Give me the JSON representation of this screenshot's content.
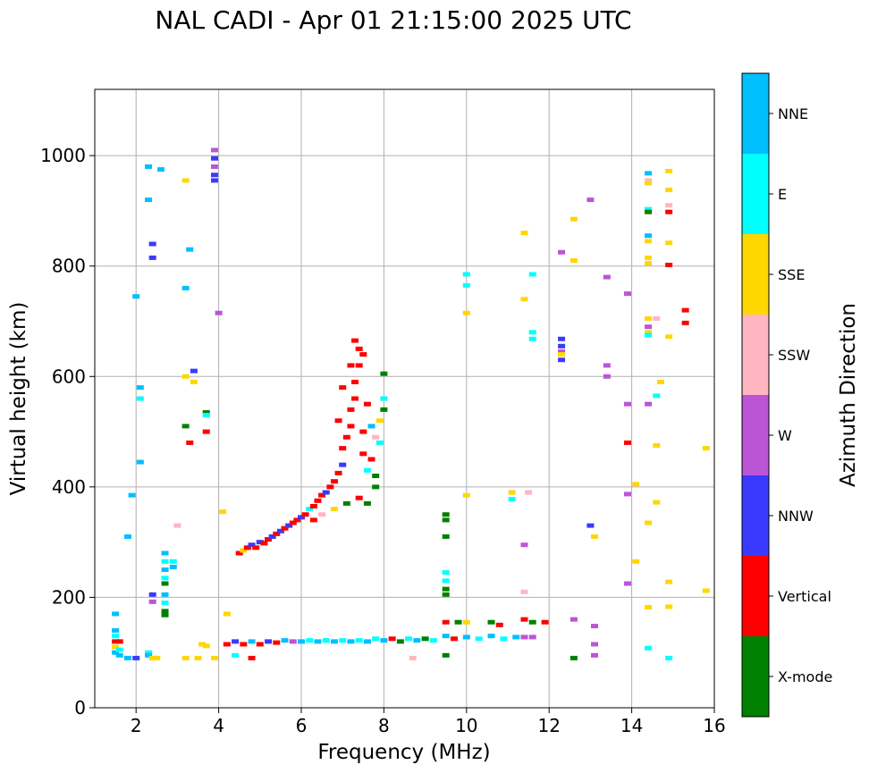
{
  "chart_data": {
    "type": "scatter",
    "title": "NAL CADI - Apr 01 21:15:00 2025 UTC",
    "xlabel": "Frequency (MHz)",
    "ylabel": "Virtual height (km)",
    "xlim": [
      1,
      16
    ],
    "ylim": [
      0,
      1120
    ],
    "xticks": [
      2,
      4,
      6,
      8,
      10,
      12,
      14,
      16
    ],
    "yticks": [
      0,
      200,
      400,
      600,
      800,
      1000
    ],
    "grid": true,
    "colorbar": {
      "label": "Azimuth Direction",
      "categories": [
        {
          "name": "X-mode",
          "color": "#008000"
        },
        {
          "name": "Vertical",
          "color": "#ff0000"
        },
        {
          "name": "NNW",
          "color": "#3a3aff"
        },
        {
          "name": "W",
          "color": "#bb55d6"
        },
        {
          "name": "SSW",
          "color": "#ffb6c1"
        },
        {
          "name": "SSE",
          "color": "#ffd700"
        },
        {
          "name": "E",
          "color": "#00ffff"
        },
        {
          "name": "NNE",
          "color": "#00bfff"
        }
      ]
    },
    "echoes": [
      [
        1.5,
        170,
        "NNE"
      ],
      [
        1.5,
        140,
        "NNE"
      ],
      [
        1.5,
        130,
        "E"
      ],
      [
        1.5,
        120,
        "Vertical"
      ],
      [
        1.5,
        110,
        "SSE"
      ],
      [
        1.5,
        100,
        "NNE"
      ],
      [
        1.6,
        120,
        "Vertical"
      ],
      [
        1.6,
        105,
        "E"
      ],
      [
        1.6,
        95,
        "NNE"
      ],
      [
        1.8,
        90,
        "NNE"
      ],
      [
        2.0,
        90,
        "NNW"
      ],
      [
        2.3,
        100,
        "E"
      ],
      [
        2.3,
        95,
        "NNE"
      ],
      [
        2.4,
        90,
        "SSE"
      ],
      [
        1.9,
        385,
        "NNE"
      ],
      [
        1.8,
        310,
        "NNE"
      ],
      [
        2.1,
        580,
        "NNE"
      ],
      [
        2.1,
        560,
        "E"
      ],
      [
        2.1,
        445,
        "NNE"
      ],
      [
        2.0,
        745,
        "NNE"
      ],
      [
        2.3,
        980,
        "NNE"
      ],
      [
        2.3,
        920,
        "NNE"
      ],
      [
        2.4,
        840,
        "NNW"
      ],
      [
        2.4,
        815,
        "NNW"
      ],
      [
        2.6,
        975,
        "NNE"
      ],
      [
        2.4,
        205,
        "NNW"
      ],
      [
        2.4,
        192,
        "W"
      ],
      [
        2.7,
        280,
        "NNE"
      ],
      [
        2.7,
        265,
        "E"
      ],
      [
        2.7,
        250,
        "NNE"
      ],
      [
        2.7,
        235,
        "E"
      ],
      [
        2.7,
        225,
        "X-mode"
      ],
      [
        2.7,
        205,
        "NNE"
      ],
      [
        2.7,
        190,
        "E"
      ],
      [
        2.7,
        175,
        "X-mode"
      ],
      [
        2.7,
        168,
        "X-mode"
      ],
      [
        2.9,
        265,
        "E"
      ],
      [
        2.9,
        255,
        "NNE"
      ],
      [
        3.3,
        830,
        "NNE"
      ],
      [
        3.2,
        760,
        "NNE"
      ],
      [
        3.2,
        600,
        "SSE"
      ],
      [
        3.3,
        480,
        "Vertical"
      ],
      [
        3.4,
        610,
        "NNW"
      ],
      [
        3.4,
        590,
        "SSE"
      ],
      [
        3.2,
        510,
        "X-mode"
      ],
      [
        3.2,
        955,
        "SSE"
      ],
      [
        3.0,
        330,
        "SSW"
      ],
      [
        3.7,
        535,
        "X-mode"
      ],
      [
        3.7,
        530,
        "E"
      ],
      [
        3.7,
        500,
        "Vertical"
      ],
      [
        3.9,
        1010,
        "W"
      ],
      [
        3.9,
        995,
        "NNW"
      ],
      [
        3.9,
        980,
        "W"
      ],
      [
        3.9,
        965,
        "NNW"
      ],
      [
        3.9,
        955,
        "NNW"
      ],
      [
        4.0,
        715,
        "W"
      ],
      [
        4.1,
        355,
        "SSE"
      ],
      [
        4.2,
        170,
        "SSE"
      ],
      [
        3.2,
        90,
        "SSE"
      ],
      [
        3.5,
        90,
        "SSE"
      ],
      [
        3.6,
        115,
        "SSE"
      ],
      [
        3.7,
        112,
        "SSE"
      ],
      [
        3.9,
        90,
        "SSE"
      ],
      [
        2.5,
        90,
        "SSE"
      ],
      [
        4.5,
        280,
        "Vertical"
      ],
      [
        4.6,
        285,
        "SSE"
      ],
      [
        4.7,
        290,
        "Vertical"
      ],
      [
        4.8,
        295,
        "NNW"
      ],
      [
        4.9,
        290,
        "Vertical"
      ],
      [
        5.0,
        300,
        "NNW"
      ],
      [
        5.1,
        298,
        "Vertical"
      ],
      [
        5.2,
        305,
        "Vertical"
      ],
      [
        5.3,
        310,
        "NNW"
      ],
      [
        5.4,
        315,
        "Vertical"
      ],
      [
        5.5,
        320,
        "NNW"
      ],
      [
        5.6,
        325,
        "Vertical"
      ],
      [
        5.7,
        330,
        "NNW"
      ],
      [
        5.8,
        335,
        "Vertical"
      ],
      [
        5.9,
        340,
        "Vertical"
      ],
      [
        6.0,
        345,
        "NNW"
      ],
      [
        6.1,
        350,
        "Vertical"
      ],
      [
        6.2,
        360,
        "E"
      ],
      [
        6.3,
        365,
        "Vertical"
      ],
      [
        6.4,
        375,
        "Vertical"
      ],
      [
        6.5,
        385,
        "Vertical"
      ],
      [
        6.6,
        390,
        "NNW"
      ],
      [
        6.7,
        400,
        "Vertical"
      ],
      [
        6.8,
        410,
        "Vertical"
      ],
      [
        6.9,
        425,
        "Vertical"
      ],
      [
        7.0,
        440,
        "NNW"
      ],
      [
        7.0,
        470,
        "Vertical"
      ],
      [
        7.1,
        490,
        "Vertical"
      ],
      [
        7.2,
        510,
        "Vertical"
      ],
      [
        7.2,
        540,
        "Vertical"
      ],
      [
        7.3,
        560,
        "Vertical"
      ],
      [
        7.3,
        590,
        "Vertical"
      ],
      [
        7.4,
        620,
        "Vertical"
      ],
      [
        7.4,
        650,
        "Vertical"
      ],
      [
        7.3,
        665,
        "Vertical"
      ],
      [
        7.5,
        460,
        "Vertical"
      ],
      [
        7.6,
        430,
        "E"
      ],
      [
        7.7,
        450,
        "Vertical"
      ],
      [
        7.8,
        420,
        "X-mode"
      ],
      [
        7.9,
        480,
        "E"
      ],
      [
        7.9,
        520,
        "SSE"
      ],
      [
        8.0,
        540,
        "X-mode"
      ],
      [
        8.0,
        560,
        "E"
      ],
      [
        8.0,
        605,
        "X-mode"
      ],
      [
        7.8,
        400,
        "X-mode"
      ],
      [
        7.6,
        370,
        "X-mode"
      ],
      [
        7.4,
        380,
        "Vertical"
      ],
      [
        6.5,
        350,
        "SSW"
      ],
      [
        6.8,
        360,
        "SSE"
      ],
      [
        7.1,
        370,
        "X-mode"
      ],
      [
        6.3,
        340,
        "Vertical"
      ],
      [
        6.9,
        520,
        "Vertical"
      ],
      [
        7.0,
        580,
        "Vertical"
      ],
      [
        7.6,
        550,
        "Vertical"
      ],
      [
        7.5,
        500,
        "Vertical"
      ],
      [
        7.8,
        490,
        "SSW"
      ],
      [
        7.7,
        510,
        "NNE"
      ],
      [
        7.2,
        620,
        "Vertical"
      ],
      [
        7.5,
        640,
        "Vertical"
      ],
      [
        4.2,
        115,
        "Vertical"
      ],
      [
        4.4,
        120,
        "NNW"
      ],
      [
        4.6,
        115,
        "Vertical"
      ],
      [
        4.8,
        120,
        "NNE"
      ],
      [
        5.0,
        115,
        "Vertical"
      ],
      [
        5.2,
        120,
        "NNW"
      ],
      [
        5.4,
        118,
        "Vertical"
      ],
      [
        5.6,
        122,
        "NNE"
      ],
      [
        5.8,
        120,
        "W"
      ],
      [
        6.0,
        120,
        "NNE"
      ],
      [
        6.2,
        122,
        "E"
      ],
      [
        6.4,
        120,
        "NNE"
      ],
      [
        6.6,
        122,
        "E"
      ],
      [
        6.8,
        120,
        "NNE"
      ],
      [
        7.0,
        122,
        "E"
      ],
      [
        7.2,
        120,
        "NNE"
      ],
      [
        7.4,
        122,
        "E"
      ],
      [
        7.6,
        120,
        "NNE"
      ],
      [
        7.8,
        125,
        "E"
      ],
      [
        8.0,
        122,
        "NNE"
      ],
      [
        8.2,
        125,
        "Vertical"
      ],
      [
        8.4,
        120,
        "X-mode"
      ],
      [
        8.6,
        125,
        "E"
      ],
      [
        8.8,
        122,
        "NNE"
      ],
      [
        9.0,
        125,
        "X-mode"
      ],
      [
        9.2,
        122,
        "E"
      ],
      [
        9.5,
        130,
        "NNE"
      ],
      [
        9.7,
        125,
        "Vertical"
      ],
      [
        10.0,
        128,
        "NNE"
      ],
      [
        10.3,
        125,
        "E"
      ],
      [
        10.6,
        130,
        "NNE"
      ],
      [
        10.9,
        125,
        "E"
      ],
      [
        11.2,
        128,
        "NNE"
      ],
      [
        4.4,
        95,
        "E"
      ],
      [
        4.8,
        90,
        "Vertical"
      ],
      [
        8.7,
        90,
        "SSW"
      ],
      [
        9.5,
        350,
        "X-mode"
      ],
      [
        9.5,
        340,
        "X-mode"
      ],
      [
        9.5,
        310,
        "X-mode"
      ],
      [
        9.5,
        245,
        "E"
      ],
      [
        9.5,
        230,
        "E"
      ],
      [
        9.5,
        215,
        "X-mode"
      ],
      [
        9.5,
        205,
        "X-mode"
      ],
      [
        9.5,
        155,
        "Vertical"
      ],
      [
        9.5,
        95,
        "X-mode"
      ],
      [
        9.8,
        155,
        "X-mode"
      ],
      [
        10.0,
        155,
        "SSE"
      ],
      [
        10.6,
        155,
        "X-mode"
      ],
      [
        10.8,
        150,
        "Vertical"
      ],
      [
        11.4,
        160,
        "Vertical"
      ],
      [
        11.6,
        155,
        "X-mode"
      ],
      [
        11.9,
        155,
        "Vertical"
      ],
      [
        10.0,
        785,
        "E"
      ],
      [
        10.0,
        765,
        "E"
      ],
      [
        10.0,
        715,
        "SSE"
      ],
      [
        10.0,
        385,
        "SSE"
      ],
      [
        11.1,
        390,
        "SSE"
      ],
      [
        11.1,
        378,
        "E"
      ],
      [
        11.5,
        390,
        "SSW"
      ],
      [
        11.4,
        295,
        "W"
      ],
      [
        11.4,
        210,
        "SSW"
      ],
      [
        11.4,
        128,
        "W"
      ],
      [
        11.6,
        128,
        "W"
      ],
      [
        11.4,
        860,
        "SSE"
      ],
      [
        11.4,
        740,
        "SSE"
      ],
      [
        11.6,
        785,
        "E"
      ],
      [
        11.6,
        680,
        "E"
      ],
      [
        11.6,
        668,
        "E"
      ],
      [
        12.3,
        668,
        "NNW"
      ],
      [
        12.3,
        655,
        "NNW"
      ],
      [
        12.3,
        645,
        "W"
      ],
      [
        12.3,
        640,
        "SSE"
      ],
      [
        12.3,
        630,
        "NNW"
      ],
      [
        12.3,
        825,
        "W"
      ],
      [
        12.6,
        885,
        "SSE"
      ],
      [
        12.6,
        810,
        "SSE"
      ],
      [
        12.6,
        160,
        "W"
      ],
      [
        12.6,
        90,
        "X-mode"
      ],
      [
        13.0,
        920,
        "W"
      ],
      [
        13.0,
        330,
        "NNW"
      ],
      [
        13.1,
        310,
        "SSE"
      ],
      [
        13.1,
        148,
        "W"
      ],
      [
        13.1,
        115,
        "W"
      ],
      [
        13.1,
        95,
        "W"
      ],
      [
        13.4,
        780,
        "W"
      ],
      [
        13.4,
        620,
        "W"
      ],
      [
        13.4,
        600,
        "W"
      ],
      [
        13.9,
        750,
        "W"
      ],
      [
        13.9,
        550,
        "W"
      ],
      [
        13.9,
        480,
        "Vertical"
      ],
      [
        13.9,
        387,
        "W"
      ],
      [
        13.9,
        225,
        "W"
      ],
      [
        14.1,
        405,
        "SSE"
      ],
      [
        14.1,
        265,
        "SSE"
      ],
      [
        14.4,
        968,
        "NNE"
      ],
      [
        14.4,
        955,
        "SSW"
      ],
      [
        14.4,
        950,
        "SSE"
      ],
      [
        14.4,
        903,
        "E"
      ],
      [
        14.4,
        898,
        "X-mode"
      ],
      [
        14.4,
        855,
        "NNE"
      ],
      [
        14.4,
        845,
        "SSE"
      ],
      [
        14.4,
        815,
        "SSE"
      ],
      [
        14.4,
        805,
        "SSE"
      ],
      [
        14.4,
        705,
        "SSE"
      ],
      [
        14.4,
        690,
        "W"
      ],
      [
        14.4,
        680,
        "SSE"
      ],
      [
        14.4,
        675,
        "E"
      ],
      [
        14.4,
        550,
        "W"
      ],
      [
        14.4,
        335,
        "SSE"
      ],
      [
        14.4,
        182,
        "SSE"
      ],
      [
        14.4,
        108,
        "E"
      ],
      [
        14.7,
        590,
        "SSE"
      ],
      [
        14.6,
        565,
        "E"
      ],
      [
        14.6,
        475,
        "SSE"
      ],
      [
        14.6,
        372,
        "SSE"
      ],
      [
        14.6,
        705,
        "SSW"
      ],
      [
        14.9,
        972,
        "SSE"
      ],
      [
        14.9,
        938,
        "SSE"
      ],
      [
        14.9,
        910,
        "SSW"
      ],
      [
        14.9,
        898,
        "Vertical"
      ],
      [
        14.9,
        842,
        "SSE"
      ],
      [
        14.9,
        802,
        "Vertical"
      ],
      [
        14.9,
        672,
        "SSE"
      ],
      [
        14.9,
        228,
        "SSE"
      ],
      [
        14.9,
        183,
        "SSE"
      ],
      [
        14.9,
        90,
        "E"
      ],
      [
        15.3,
        720,
        "Vertical"
      ],
      [
        15.3,
        697,
        "Vertical"
      ],
      [
        15.8,
        470,
        "SSE"
      ],
      [
        15.8,
        212,
        "SSE"
      ]
    ]
  }
}
